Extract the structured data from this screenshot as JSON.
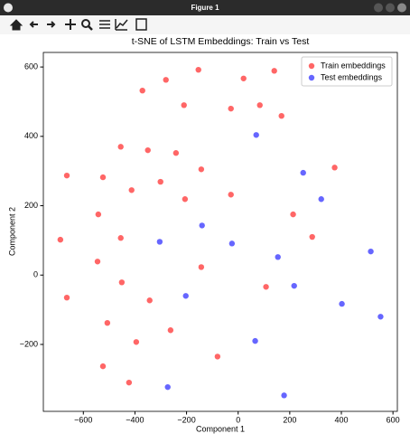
{
  "window_title": "Figure 1",
  "chart_data": {
    "type": "scatter",
    "title": "t-SNE of LSTM Embeddings: Train vs Test",
    "xlabel": "Component 1",
    "ylabel": "Component 2",
    "xlim": [
      -755,
      617
    ],
    "ylim": [
      -393,
      642
    ],
    "xticks": [
      {
        "value": -600,
        "label": "−600"
      },
      {
        "value": -400,
        "label": "−400"
      },
      {
        "value": -200,
        "label": "−200"
      },
      0,
      200,
      400,
      600
    ],
    "yticks": [
      {
        "value": -200,
        "label": "−200"
      },
      0,
      200,
      400,
      600
    ],
    "grid": false,
    "legend": "upper right",
    "alpha": 0.6,
    "series": [
      {
        "name": "Train embeddings",
        "color": "#ff0000",
        "x": [
          -154,
          140,
          -371,
          -280,
          21,
          -210,
          -28,
          84,
          168,
          -455,
          -350,
          -241,
          -143,
          374,
          -664,
          -524,
          -301,
          -413,
          -28,
          -206,
          -542,
          213,
          -455,
          287,
          -689,
          -545,
          -143,
          -451,
          108,
          -664,
          -343,
          -507,
          -262,
          -395,
          -80,
          -524,
          -423
        ],
        "values": [
          592,
          589,
          532,
          563,
          567,
          490,
          480,
          490,
          459,
          370,
          360,
          352,
          305,
          310,
          287,
          282,
          269,
          245,
          232,
          219,
          175,
          175,
          107,
          110,
          102,
          39,
          23,
          -21,
          -34,
          -65,
          -73,
          -138,
          -159,
          -193,
          -235,
          -263,
          -310
        ]
      },
      {
        "name": "Test embeddings",
        "color": "#0000ff",
        "x": [
          70,
          252,
          322,
          -140,
          -304,
          -24,
          514,
          154,
          217,
          -203,
          402,
          552,
          66,
          -273,
          178
        ],
        "values": [
          404,
          295,
          219,
          143,
          96,
          91,
          68,
          52,
          -31,
          -60,
          -83,
          -120,
          -190,
          -323,
          -347
        ]
      }
    ]
  }
}
